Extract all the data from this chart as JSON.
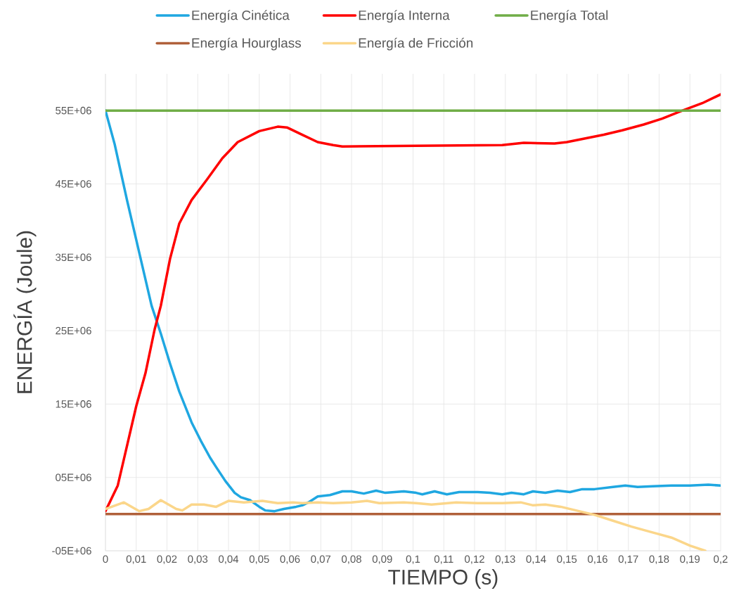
{
  "chart_data": {
    "type": "line",
    "xlabel": "TIEMPO (s)",
    "ylabel": "ENERGÍA (Joule)",
    "xlim": [
      0,
      0.2
    ],
    "ylim": [
      -5000000,
      60000000
    ],
    "xticks": [
      0,
      {
        "value": 0.01,
        "label": "0,01"
      },
      {
        "value": 0.02,
        "label": "0,02"
      },
      {
        "value": 0.03,
        "label": "0,03"
      },
      {
        "value": 0.04,
        "label": "0,04"
      },
      {
        "value": 0.05,
        "label": "0,05"
      },
      {
        "value": 0.06,
        "label": "0,06"
      },
      {
        "value": 0.07,
        "label": "0,07"
      },
      {
        "value": 0.08,
        "label": "0,08"
      },
      {
        "value": 0.09,
        "label": "0,09"
      },
      {
        "value": 0.1,
        "label": "0,1"
      },
      {
        "value": 0.11,
        "label": "0,11"
      },
      {
        "value": 0.12,
        "label": "0,12"
      },
      {
        "value": 0.13,
        "label": "0,13"
      },
      {
        "value": 0.14,
        "label": "0,14"
      },
      {
        "value": 0.15,
        "label": "0,15"
      },
      {
        "value": 0.16,
        "label": "0,16"
      },
      {
        "value": 0.17,
        "label": "0,17"
      },
      {
        "value": 0.18,
        "label": "0,18"
      },
      {
        "value": 0.19,
        "label": "0,19"
      },
      {
        "value": 0.2,
        "label": "0,2"
      }
    ],
    "yticks": [
      {
        "value": -5000000,
        "label": "-05E+06"
      },
      {
        "value": 5000000,
        "label": "05E+06"
      },
      {
        "value": 15000000,
        "label": "15E+06"
      },
      {
        "value": 25000000,
        "label": "25E+06"
      },
      {
        "value": 35000000,
        "label": "35E+06"
      },
      {
        "value": 45000000,
        "label": "45E+06"
      },
      {
        "value": 55000000,
        "label": "55E+06"
      }
    ],
    "grid": true,
    "legend": "top",
    "series": [
      {
        "name": "Energía Cinética",
        "color": "#1fa7e1",
        "x": [
          0,
          0.003,
          0.007,
          0.015,
          0.018,
          0.021,
          0.024,
          0.028,
          0.031,
          0.034,
          0.036,
          0.039,
          0.042,
          0.044,
          0.047,
          0.05,
          0.052,
          0.055,
          0.058,
          0.062,
          0.064,
          0.066,
          0.069,
          0.073,
          0.077,
          0.08,
          0.084,
          0.088,
          0.091,
          0.097,
          0.101,
          0.103,
          0.107,
          0.111,
          0.115,
          0.121,
          0.125,
          0.129,
          0.132,
          0.136,
          0.139,
          0.143,
          0.147,
          0.151,
          0.155,
          0.159,
          0.165,
          0.169,
          0.173,
          0.178,
          0.184,
          0.19,
          0.196,
          0.2
        ],
        "values": [
          55000000,
          50400000,
          42800000,
          28400000,
          24600000,
          20500000,
          16700000,
          12500000,
          10000000,
          7700000,
          6400000,
          4500000,
          2900000,
          2300000,
          1900000,
          1000000,
          500000,
          400000,
          700000,
          1000000,
          1200000,
          1600000,
          2400000,
          2600000,
          3100000,
          3100000,
          2800000,
          3200000,
          2900000,
          3100000,
          2900000,
          2700000,
          3100000,
          2700000,
          3000000,
          3000000,
          2900000,
          2700000,
          2900000,
          2700000,
          3100000,
          2900000,
          3200000,
          3000000,
          3400000,
          3400000,
          3700000,
          3900000,
          3700000,
          3800000,
          3900000,
          3900000,
          4000000,
          3900000
        ]
      },
      {
        "name": "Energía Interna",
        "color": "#ff0000",
        "x": [
          0,
          0.004,
          0.007,
          0.01,
          0.013,
          0.016,
          0.018,
          0.021,
          0.024,
          0.028,
          0.033,
          0.038,
          0.043,
          0.05,
          0.056,
          0.059,
          0.064,
          0.069,
          0.074,
          0.077,
          0.101,
          0.129,
          0.136,
          0.146,
          0.15,
          0.156,
          0.162,
          0.168,
          0.175,
          0.181,
          0.187,
          0.194,
          0.2
        ],
        "values": [
          400000,
          3900000,
          9300000,
          14700000,
          19200000,
          25200000,
          28400000,
          34800000,
          39600000,
          42800000,
          45600000,
          48500000,
          50700000,
          52200000,
          52800000,
          52700000,
          51700000,
          50700000,
          50300000,
          50100000,
          50200000,
          50300000,
          50600000,
          50500000,
          50700000,
          51200000,
          51700000,
          52300000,
          53100000,
          53900000,
          54900000,
          56000000,
          57200000
        ]
      },
      {
        "name": "Energía Total",
        "color": "#70ad47",
        "x": [
          0,
          0.2
        ],
        "values": [
          55000000,
          55000000
        ]
      },
      {
        "name": "Energía Hourglass",
        "color": "#b0603a",
        "x": [
          0,
          0.2
        ],
        "values": [
          0,
          0
        ]
      },
      {
        "name": "Energía de Fricción",
        "color": "#fbd68a",
        "x": [
          0,
          0.006,
          0.011,
          0.014,
          0.018,
          0.023,
          0.025,
          0.028,
          0.032,
          0.036,
          0.04,
          0.045,
          0.051,
          0.056,
          0.061,
          0.064,
          0.069,
          0.074,
          0.08,
          0.085,
          0.089,
          0.097,
          0.101,
          0.106,
          0.114,
          0.121,
          0.129,
          0.135,
          0.139,
          0.143,
          0.148,
          0.153,
          0.159,
          0.165,
          0.171,
          0.177,
          0.184,
          0.19,
          0.195
        ],
        "values": [
          700000,
          1600000,
          400000,
          700000,
          1900000,
          700000,
          500000,
          1300000,
          1300000,
          1000000,
          1800000,
          1600000,
          1800000,
          1500000,
          1600000,
          1500000,
          1600000,
          1500000,
          1600000,
          1800000,
          1500000,
          1600000,
          1500000,
          1300000,
          1600000,
          1500000,
          1500000,
          1600000,
          1200000,
          1300000,
          1000000,
          500000,
          -100000,
          -900000,
          -1700000,
          -2400000,
          -3200000,
          -4300000,
          -5000000
        ]
      }
    ]
  }
}
